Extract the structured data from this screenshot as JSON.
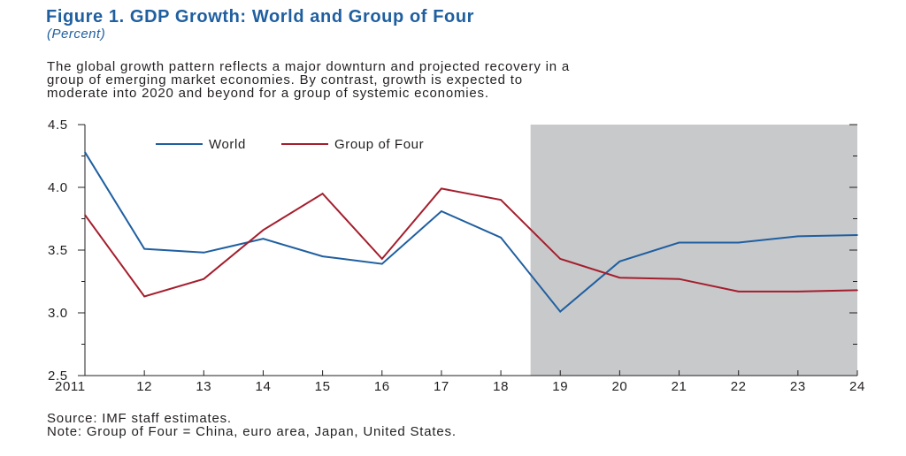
{
  "figure": {
    "title": "Figure 1.  GDP Growth: World and Group of Four",
    "unit": "(Percent)",
    "description": [
      "The global growth pattern reflects a major downturn and projected recovery in a",
      "group of emerging market economies. By contrast, growth is expected to",
      "moderate into 2020 and beyond for a group of systemic economies."
    ],
    "source": "Source: IMF staff estimates.",
    "note": "Note: Group of Four = China, euro area, Japan, United States."
  },
  "chart_data": {
    "type": "line",
    "x": [
      "2011",
      "12",
      "13",
      "14",
      "15",
      "16",
      "17",
      "18",
      "19",
      "20",
      "21",
      "22",
      "23",
      "24"
    ],
    "series": [
      {
        "name": "World",
        "color": "#1f5fa0",
        "values": [
          4.28,
          3.51,
          3.48,
          3.59,
          3.45,
          3.39,
          3.81,
          3.6,
          3.01,
          3.41,
          3.56,
          3.56,
          3.61,
          3.62
        ]
      },
      {
        "name": "Group of Four",
        "color": "#a41e2d",
        "values": [
          3.78,
          3.13,
          3.27,
          3.66,
          3.95,
          3.43,
          3.99,
          3.9,
          3.43,
          3.28,
          3.27,
          3.17,
          3.17,
          3.18
        ]
      }
    ],
    "ylim": [
      2.5,
      4.5
    ],
    "yticks": [
      "2.5",
      "3.0",
      "3.5",
      "4.0",
      "4.5"
    ],
    "projection_from": "19",
    "projection_shading_color": "#c8c9cb",
    "legend_position": "top-left",
    "grid": false
  }
}
